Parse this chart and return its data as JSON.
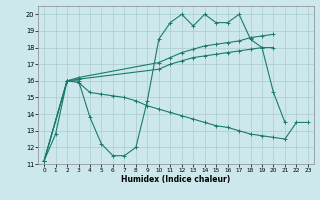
{
  "xlabel": "Humidex (Indice chaleur)",
  "bg_color": "#cce8ec",
  "grid_color": "#aacccc",
  "line_color": "#1a7a6e",
  "xlim": [
    -0.5,
    23.5
  ],
  "ylim": [
    11,
    20.5
  ],
  "xticks": [
    0,
    1,
    2,
    3,
    4,
    5,
    6,
    7,
    8,
    9,
    10,
    11,
    12,
    13,
    14,
    15,
    16,
    17,
    18,
    19,
    20,
    21,
    22,
    23
  ],
  "yticks": [
    11,
    12,
    13,
    14,
    15,
    16,
    17,
    18,
    19,
    20
  ],
  "line1_x": [
    0,
    1,
    2,
    3,
    4,
    5,
    6,
    7,
    8,
    9,
    10,
    11,
    12,
    13,
    14,
    15,
    16,
    17,
    18,
    19,
    20,
    21
  ],
  "line1_y": [
    11.2,
    12.8,
    16.0,
    16.0,
    13.8,
    12.2,
    11.5,
    11.5,
    12.0,
    14.8,
    18.5,
    19.5,
    20.0,
    19.3,
    20.0,
    19.5,
    19.5,
    20.0,
    18.5,
    18.0,
    15.3,
    13.5
  ],
  "line2_x": [
    0,
    2,
    3,
    4,
    5,
    6,
    7,
    8,
    9,
    10,
    11,
    12,
    13,
    14,
    15,
    16,
    17,
    18,
    19,
    20,
    21,
    22,
    23
  ],
  "line2_y": [
    11.2,
    16.0,
    15.9,
    15.3,
    15.2,
    15.1,
    15.0,
    14.8,
    14.5,
    14.3,
    14.1,
    13.9,
    13.7,
    13.5,
    13.3,
    13.2,
    13.0,
    12.8,
    12.7,
    12.6,
    12.5,
    13.5,
    13.5
  ],
  "line3_x": [
    0,
    2,
    3,
    10,
    11,
    12,
    13,
    14,
    15,
    16,
    17,
    18,
    19,
    20
  ],
  "line3_y": [
    11.2,
    16.0,
    16.1,
    16.7,
    17.0,
    17.2,
    17.4,
    17.5,
    17.6,
    17.7,
    17.8,
    17.9,
    18.0,
    18.0
  ],
  "line4_x": [
    0,
    2,
    3,
    10,
    11,
    12,
    13,
    14,
    15,
    16,
    17,
    18,
    19,
    20
  ],
  "line4_y": [
    11.2,
    16.0,
    16.2,
    17.1,
    17.4,
    17.7,
    17.9,
    18.1,
    18.2,
    18.3,
    18.4,
    18.6,
    18.7,
    18.8
  ]
}
